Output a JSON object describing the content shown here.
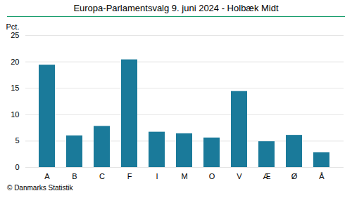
{
  "chart_data": {
    "type": "bar",
    "title": "Europa-Parlamentsvalg 9. juni 2024 - Holbæk Midt",
    "categories": [
      "A",
      "B",
      "C",
      "F",
      "I",
      "M",
      "O",
      "V",
      "Æ",
      "Ø",
      "Å"
    ],
    "values": [
      19.4,
      6.0,
      7.8,
      20.4,
      6.7,
      6.4,
      5.6,
      14.4,
      4.9,
      6.1,
      2.8
    ],
    "color": "#1a7a9a",
    "ylabel": "Pct.",
    "ylim": [
      0,
      25
    ],
    "yticks": [
      0,
      5,
      10,
      15,
      20,
      25
    ],
    "grid": true,
    "caption": "© Danmarks Statistik"
  }
}
